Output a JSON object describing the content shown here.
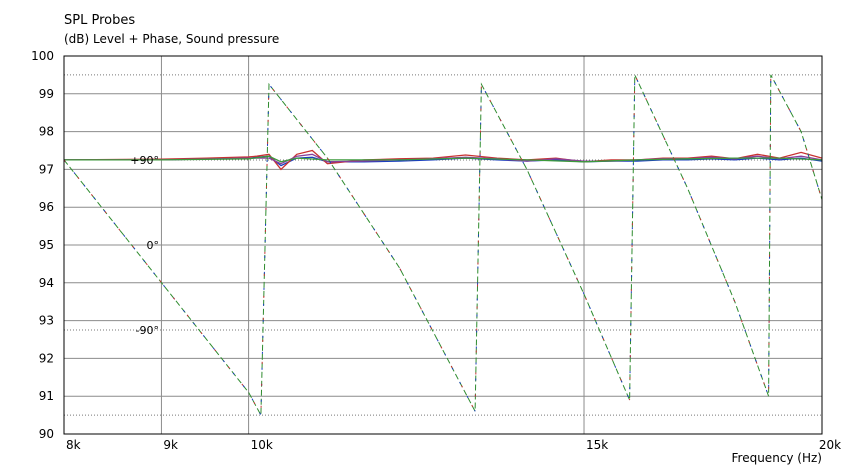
{
  "title": "SPL Probes",
  "subtitle": "(dB)  Level + Phase, Sound pressure",
  "xlabel": "Frequency  (Hz)",
  "chart_data": {
    "type": "line",
    "title": "SPL Probes",
    "ylabel": "(dB)  Level + Phase, Sound pressure",
    "xlabel": "Frequency  (Hz)",
    "xscale": "log",
    "xlim": [
      8000,
      20000
    ],
    "ylim": [
      90,
      100
    ],
    "grid": true,
    "x_ticks": [
      {
        "value": 8000,
        "label": "8k"
      },
      {
        "value": 9000,
        "label": "9k"
      },
      {
        "value": 10000,
        "label": "10k"
      },
      {
        "value": 15000,
        "label": "15k"
      },
      {
        "value": 20000,
        "label": "20k"
      }
    ],
    "y_ticks": [
      90,
      91,
      92,
      93,
      94,
      95,
      96,
      97,
      98,
      99,
      100
    ],
    "phase_labels": [
      {
        "label": "+90°",
        "y": 97.25
      },
      {
        "label": "0°",
        "y": 95.0
      },
      {
        "label": "-90°",
        "y": 92.75
      }
    ],
    "dotted_reference_lines": [
      99.5,
      97.25,
      92.75,
      90.5
    ],
    "series": [
      {
        "role": "level",
        "color": "#1a3fbf",
        "x": [
          8000,
          9000,
          10000,
          10100,
          10250,
          10400,
          10600,
          10800,
          11000,
          11500,
          12000,
          12500,
          13000,
          13500,
          14000,
          14500,
          15000,
          15500,
          16000,
          16500,
          17000,
          17500,
          18000,
          18500,
          19000,
          19500,
          20000
        ],
        "y": [
          97.25,
          97.25,
          97.3,
          97.32,
          97.35,
          97.1,
          97.3,
          97.32,
          97.2,
          97.2,
          97.22,
          97.25,
          97.3,
          97.25,
          97.22,
          97.25,
          97.2,
          97.22,
          97.22,
          97.25,
          97.25,
          97.28,
          97.25,
          97.3,
          97.25,
          97.3,
          97.22
        ]
      },
      {
        "role": "level",
        "color": "#c83232",
        "x": [
          8000,
          9000,
          9500,
          10000,
          10100,
          10250,
          10400,
          10600,
          10800,
          11000,
          11500,
          12000,
          12500,
          13000,
          13500,
          14000,
          14500,
          15000,
          15500,
          16000,
          16500,
          17000,
          17500,
          18000,
          18500,
          19000,
          19500,
          20000
        ],
        "y": [
          97.25,
          97.27,
          97.3,
          97.33,
          97.35,
          97.4,
          97.0,
          97.4,
          97.5,
          97.15,
          97.25,
          97.28,
          97.3,
          97.38,
          97.3,
          97.25,
          97.3,
          97.2,
          97.25,
          97.25,
          97.3,
          97.3,
          97.35,
          97.28,
          97.4,
          97.3,
          97.45,
          97.3
        ]
      },
      {
        "role": "level",
        "color": "#8a3f9a",
        "x": [
          8000,
          9000,
          10000,
          10100,
          10250,
          10400,
          10600,
          10800,
          11000,
          11500,
          12000,
          12500,
          13000,
          13500,
          14000,
          14500,
          15000,
          15500,
          16000,
          16500,
          17000,
          17500,
          18000,
          18500,
          19000,
          19500,
          20000
        ],
        "y": [
          97.25,
          97.25,
          97.3,
          97.3,
          97.3,
          97.15,
          97.35,
          97.4,
          97.2,
          97.22,
          97.25,
          97.28,
          97.32,
          97.28,
          97.22,
          97.28,
          97.22,
          97.22,
          97.25,
          97.28,
          97.28,
          97.32,
          97.28,
          97.35,
          97.28,
          97.35,
          97.25
        ]
      },
      {
        "role": "level",
        "color": "#3c9a3c",
        "x": [
          8000,
          9000,
          10000,
          10250,
          10400,
          10600,
          11000,
          12000,
          13000,
          14000,
          15000,
          16000,
          17000,
          18000,
          19000,
          20000
        ],
        "y": [
          97.25,
          97.25,
          97.28,
          97.35,
          97.2,
          97.3,
          97.25,
          97.25,
          97.3,
          97.25,
          97.2,
          97.25,
          97.28,
          97.3,
          97.3,
          97.25
        ]
      },
      {
        "role": "phase",
        "color": "#2e8b2e",
        "dash": "6,3",
        "x": [
          8000,
          10000,
          10150,
          10250,
          11000,
          12000,
          13150,
          13250,
          14000,
          15000,
          15850,
          15950,
          17000,
          18000,
          18750,
          18800,
          19500,
          20000
        ],
        "y": [
          97.25,
          91.1,
          90.5,
          99.25,
          97.3,
          94.4,
          90.6,
          99.25,
          97.0,
          93.7,
          90.9,
          99.5,
          96.5,
          93.5,
          91.0,
          99.5,
          98.0,
          96.2
        ]
      },
      {
        "role": "phase",
        "color": "#1a3fbf",
        "dash": "2,14",
        "x": [
          8000,
          10000,
          10150,
          10250,
          11000,
          12000,
          13150,
          13250,
          14000,
          15000,
          15850,
          15950,
          17000,
          18000,
          18750,
          18800,
          19500,
          20000
        ],
        "y": [
          97.25,
          91.1,
          90.5,
          99.25,
          97.3,
          94.4,
          90.6,
          99.25,
          97.0,
          93.7,
          90.9,
          99.5,
          96.5,
          93.5,
          91.0,
          99.5,
          98.0,
          96.2
        ]
      },
      {
        "role": "phase",
        "color": "#c83232",
        "dash": "2,20",
        "x": [
          8000,
          10000,
          10150,
          10250,
          11000,
          12000,
          13150,
          13250,
          14000,
          15000,
          15850,
          15950,
          17000,
          18000,
          18750,
          18800,
          19500,
          20000
        ],
        "y": [
          97.25,
          91.1,
          90.5,
          99.25,
          97.3,
          94.4,
          90.6,
          99.25,
          97.0,
          93.7,
          90.9,
          99.5,
          96.5,
          93.5,
          91.0,
          99.5,
          98.0,
          96.2
        ]
      }
    ]
  }
}
